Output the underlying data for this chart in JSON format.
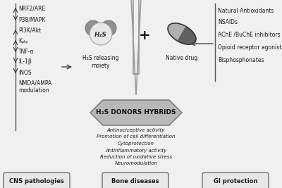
{
  "background_color": "#f0f0f0",
  "left_labels": [
    "NRF2/ARE",
    "P38/MAPK",
    "PI3K/Akt",
    "Kₐₜₚ",
    "TNF-α",
    "IL-1β",
    "iNOS",
    "NMDA/AMPA\nmodulation"
  ],
  "left_arrow_up": [
    "NRF2/ARE",
    "PI3K/Akt",
    "Kₐₜₚ"
  ],
  "left_arrow_down": [
    "P38/MAPK",
    "TNF-α",
    "IL-1β",
    "iNOS"
  ],
  "right_labels": [
    "Natural Antioxidants",
    "NSAIDs",
    "AChE /BuChE inhibitors",
    "Opioid receptor agonists",
    "Bisphosphonates"
  ],
  "bottom_labels": [
    "CNS pathologies",
    "Bone diseases",
    "GI protection"
  ],
  "hybrid_label": "H₂S DONORS HYBRIDS",
  "activities": [
    "Antinociceptive activity",
    "Promotion of cell differentiation",
    "Cytoprotection",
    "Antinflammatory activity",
    "Reduction of oxidative stress",
    "Neuromodulation"
  ],
  "h2s_label": "H₂S releasing\nmoiety",
  "native_label": "Native drug",
  "h2s_text": "H₂S",
  "plus_text": "+",
  "gray_light": "#e8e8e8",
  "gray_dark": "#606060",
  "gray_mid": "#909090",
  "gray_capsule_light": "#b0b0b0",
  "gray_capsule_dark": "#606060",
  "border_color": "#707070",
  "text_color": "#1a1a1a",
  "pentagon_fill": "#b8b8b8",
  "box_fill": "#e8e8e8"
}
